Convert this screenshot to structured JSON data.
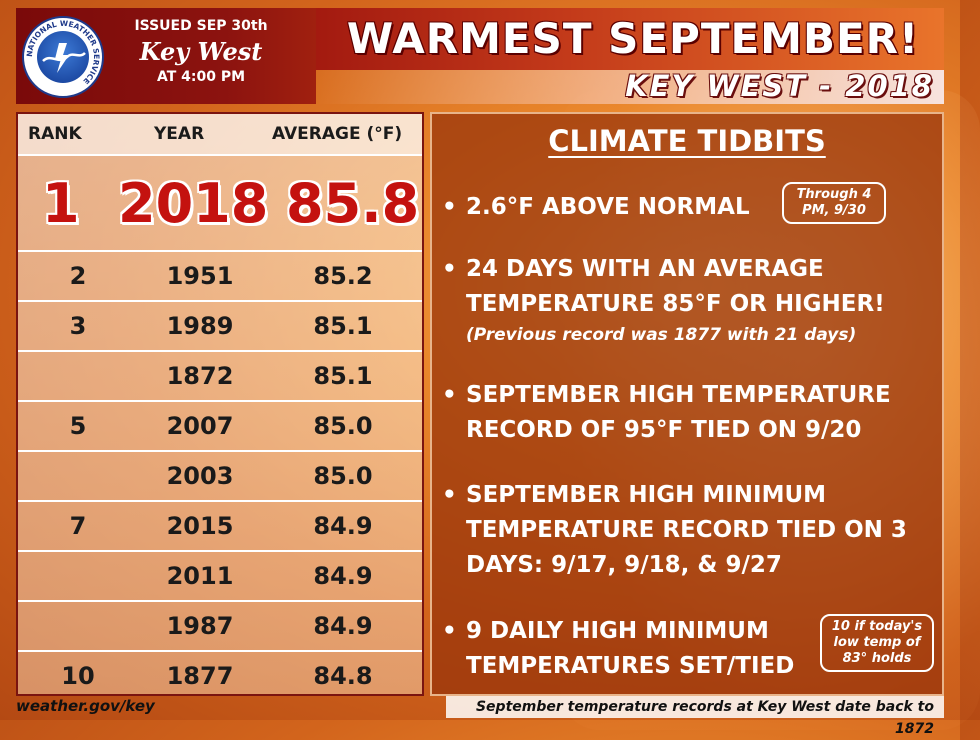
{
  "header": {
    "issued_line1": "ISSUED SEP 30th",
    "station": "Key West",
    "issued_line2": "AT 4:00 PM",
    "title": "WARMEST SEPTEMBER!",
    "subtitle": "KEY WEST - 2018",
    "logo_text": "NATIONAL WEATHER SERVICE"
  },
  "table": {
    "headers": {
      "rank": "RANK",
      "year": "YEAR",
      "average": "AVERAGE (°F)"
    },
    "top": {
      "rank": "1",
      "year": "2018",
      "average": "85.8"
    },
    "rows": [
      {
        "rank": "2",
        "year": "1951",
        "average": "85.2"
      },
      {
        "rank": "3",
        "year": "1989",
        "average": "85.1"
      },
      {
        "rank": "",
        "year": "1872",
        "average": "85.1"
      },
      {
        "rank": "5",
        "year": "2007",
        "average": "85.0"
      },
      {
        "rank": "",
        "year": "2003",
        "average": "85.0"
      },
      {
        "rank": "7",
        "year": "2015",
        "average": "84.9"
      },
      {
        "rank": "",
        "year": "2011",
        "average": "84.9"
      },
      {
        "rank": "",
        "year": "1987",
        "average": "84.9"
      },
      {
        "rank": "10",
        "year": "1877",
        "average": "84.8"
      }
    ]
  },
  "tidbits": {
    "title": "CLIMATE TIDBITS",
    "b1": "2.6°F ABOVE NORMAL",
    "b1_callout": "Through 4 PM, 9/30",
    "b2": "24 DAYS WITH AN AVERAGE TEMPERATURE 85°F OR HIGHER!",
    "b2_note": "(Previous record was 1877 with 21 days)",
    "b3": "SEPTEMBER HIGH TEMPERATURE RECORD OF 95°F TIED ON 9/20",
    "b4": "SEPTEMBER HIGH MINIMUM TEMPERATURE RECORD TIED ON 3 DAYS: 9/17, 9/18, & 9/27",
    "b5": "9 DAILY HIGH MINIMUM TEMPERATURES SET/TIED",
    "b5_callout": "10 if today's low temp of 83° holds"
  },
  "footer": {
    "left": "weather.gov/key",
    "right": "September temperature records at Key West date back to 1872"
  },
  "colors": {
    "header_dark": "#8c130f",
    "rank_highlight": "#c4120f",
    "panel": "#96320a"
  }
}
